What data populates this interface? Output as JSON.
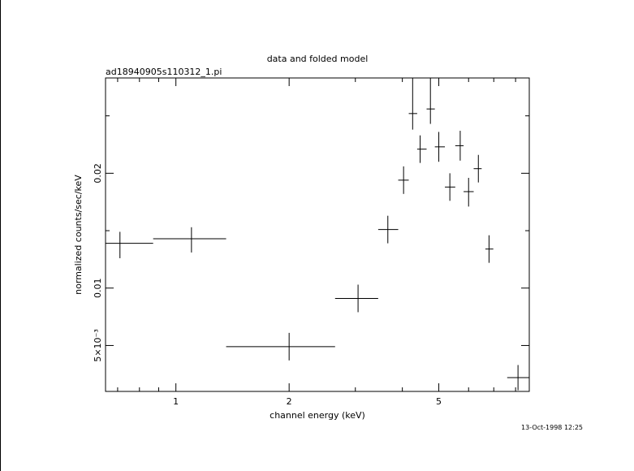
{
  "chart_data": {
    "type": "scatter",
    "title": "data and folded model",
    "subtitle": "ad18940905s110312_1.pi",
    "xlabel": "channel energy (keV)",
    "ylabel": "normalized counts/sec/keV",
    "x_scale": "log",
    "y_scale": "linear",
    "xlim": [
      0.65,
      8.7
    ],
    "ylim": [
      0.001,
      0.0283
    ],
    "grid": false,
    "x_ticks": [
      {
        "value": 1,
        "label": "1"
      },
      {
        "value": 2,
        "label": "2"
      },
      {
        "value": 5,
        "label": "5"
      }
    ],
    "y_ticks": [
      {
        "value": 0.005,
        "label": "5×10⁻³"
      },
      {
        "value": 0.01,
        "label": "0.01"
      },
      {
        "value": 0.02,
        "label": "0.02"
      }
    ],
    "series": [
      {
        "points": [
          {
            "x": 0.71,
            "xlo": 0.65,
            "xhi": 0.87,
            "y": 0.0139,
            "ylo": 0.0126,
            "yhi": 0.0149
          },
          {
            "x": 1.1,
            "xlo": 0.87,
            "xhi": 1.36,
            "y": 0.0143,
            "ylo": 0.0131,
            "yhi": 0.0153
          },
          {
            "x": 2.0,
            "xlo": 1.36,
            "xhi": 2.65,
            "y": 0.0049,
            "ylo": 0.0037,
            "yhi": 0.0061
          },
          {
            "x": 3.05,
            "xlo": 2.65,
            "xhi": 3.45,
            "y": 0.0091,
            "ylo": 0.0079,
            "yhi": 0.0103
          },
          {
            "x": 3.66,
            "xlo": 3.45,
            "xhi": 3.9,
            "y": 0.0151,
            "ylo": 0.0139,
            "yhi": 0.0163
          },
          {
            "x": 4.03,
            "xlo": 3.9,
            "xhi": 4.16,
            "y": 0.0194,
            "ylo": 0.0182,
            "yhi": 0.0206
          },
          {
            "x": 4.26,
            "xlo": 4.16,
            "xhi": 4.38,
            "y": 0.0252,
            "ylo": 0.0238,
            "yhi": 0.0283
          },
          {
            "x": 4.46,
            "xlo": 4.38,
            "xhi": 4.64,
            "y": 0.0221,
            "ylo": 0.0209,
            "yhi": 0.0233
          },
          {
            "x": 4.75,
            "xlo": 4.64,
            "xhi": 4.88,
            "y": 0.0256,
            "ylo": 0.0243,
            "yhi": 0.0283
          },
          {
            "x": 5.0,
            "xlo": 4.88,
            "xhi": 5.19,
            "y": 0.0223,
            "ylo": 0.021,
            "yhi": 0.0236
          },
          {
            "x": 5.35,
            "xlo": 5.19,
            "xhi": 5.53,
            "y": 0.0188,
            "ylo": 0.0176,
            "yhi": 0.02
          },
          {
            "x": 5.7,
            "xlo": 5.53,
            "xhi": 5.82,
            "y": 0.0224,
            "ylo": 0.0211,
            "yhi": 0.0237
          },
          {
            "x": 6.0,
            "xlo": 5.82,
            "xhi": 6.19,
            "y": 0.0184,
            "ylo": 0.0171,
            "yhi": 0.0196
          },
          {
            "x": 6.37,
            "xlo": 6.19,
            "xhi": 6.5,
            "y": 0.0204,
            "ylo": 0.0192,
            "yhi": 0.0216
          },
          {
            "x": 6.8,
            "xlo": 6.65,
            "xhi": 6.98,
            "y": 0.0134,
            "ylo": 0.0122,
            "yhi": 0.0146
          },
          {
            "x": 8.12,
            "xlo": 7.6,
            "xhi": 8.7,
            "y": 0.0022,
            "ylo": 0.0011,
            "yhi": 0.0033
          }
        ]
      }
    ]
  },
  "timestamp": "13-Oct-1998 12:25",
  "colors": {
    "foreground": "#000000",
    "background": "#ffffff"
  }
}
